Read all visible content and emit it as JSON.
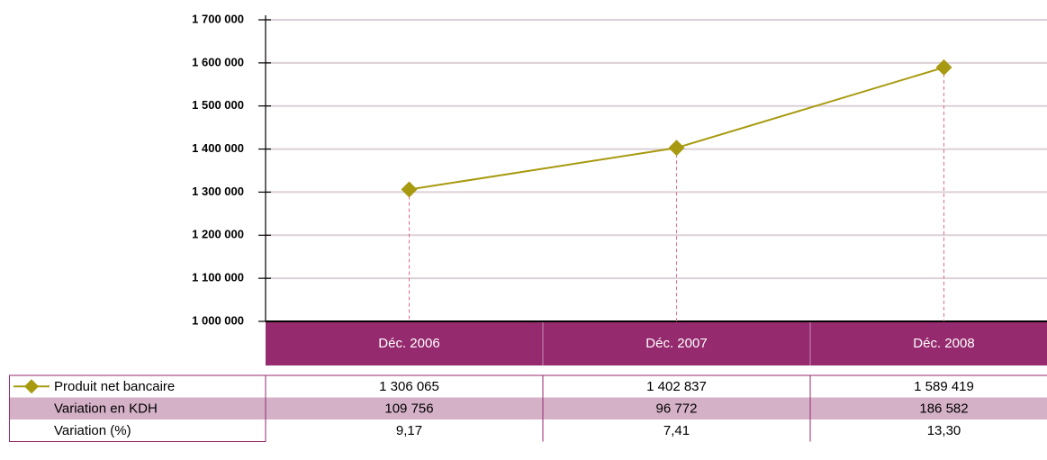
{
  "chart_data": {
    "type": "line",
    "categories": [
      "Déc. 2006",
      "Déc. 2007",
      "Déc. 2008"
    ],
    "series": [
      {
        "name": "Produit net bancaire",
        "color": "#a89a10",
        "values": [
          1306065,
          1402837,
          1589419
        ],
        "value_labels": [
          "1 306 065",
          "1 402 837",
          "1 589 419"
        ]
      }
    ],
    "table": {
      "rows": [
        {
          "name": "Variation en KDH",
          "values": [
            109756,
            96772,
            186582
          ],
          "value_labels": [
            "109 756",
            "96 772",
            "186 582"
          ]
        },
        {
          "name": "Variation (%)",
          "values": [
            9.17,
            7.41,
            13.3
          ],
          "value_labels": [
            "9,17",
            "7,41",
            "13,30"
          ]
        }
      ]
    },
    "ylim": [
      1000000,
      1700000
    ],
    "yticks": [
      {
        "value": 1000000,
        "label": "1 000 000"
      },
      {
        "value": 1100000,
        "label": "1 100 000"
      },
      {
        "value": 1200000,
        "label": "1 200 000"
      },
      {
        "value": 1300000,
        "label": "1 300 000"
      },
      {
        "value": 1400000,
        "label": "1 400 000"
      },
      {
        "value": 1500000,
        "label": "1 500 000"
      },
      {
        "value": 1600000,
        "label": "1 600 000"
      },
      {
        "value": 1700000,
        "label": "1 700 000"
      }
    ],
    "grid": true
  }
}
